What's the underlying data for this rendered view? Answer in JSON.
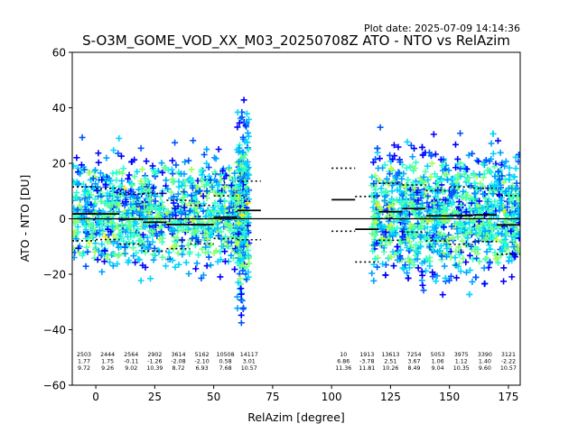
{
  "chart_data": {
    "type": "scatter",
    "title": "S-O3M_GOME_VOD_XX_M03_20250708Z ATO - NTO vs RelAzim",
    "plot_date": "Plot date: 2025-07-09 14:14:36",
    "xlabel": "RelAzim [degree]",
    "ylabel": "ATO - NTO [DU]",
    "xlim": [
      -10,
      180
    ],
    "ylim": [
      -60,
      60
    ],
    "xticks": [
      "0",
      "25",
      "50",
      "75",
      "100",
      "125",
      "150",
      "175"
    ],
    "xtick_values": [
      0,
      25,
      50,
      75,
      100,
      125,
      150,
      175
    ],
    "yticks": [
      "60",
      "40",
      "20",
      "0",
      "−20",
      "−40",
      "−60"
    ],
    "ytick_values": [
      60,
      40,
      20,
      0,
      -20,
      -40,
      -60
    ],
    "zero_line": 0,
    "grid": false,
    "legend": "none",
    "bins": [
      {
        "x": -5,
        "count": "2503",
        "mean": "1.77",
        "std": "9.72"
      },
      {
        "x": 5,
        "count": "2444",
        "mean": "1.75",
        "std": "9.26"
      },
      {
        "x": 15,
        "count": "2564",
        "mean": "-0.11",
        "std": "9.02"
      },
      {
        "x": 25,
        "count": "2902",
        "mean": "-1.26",
        "std": "10.39"
      },
      {
        "x": 35,
        "count": "3614",
        "mean": "-2.08",
        "std": "8.72"
      },
      {
        "x": 45,
        "count": "5162",
        "mean": "-2.10",
        "std": "6.93"
      },
      {
        "x": 55,
        "count": "10508",
        "mean": "0.58",
        "std": "7.68"
      },
      {
        "x": 65,
        "count": "14117",
        "mean": "3.01",
        "std": "10.57"
      },
      {
        "x": 105,
        "count": "10",
        "mean": "6.86",
        "std": "11.36"
      },
      {
        "x": 115,
        "count": "1913",
        "mean": "-3.78",
        "std": "11.81"
      },
      {
        "x": 125,
        "count": "13613",
        "mean": "2.51",
        "std": "10.26"
      },
      {
        "x": 135,
        "count": "7254",
        "mean": "3.67",
        "std": "8.49"
      },
      {
        "x": 145,
        "count": "5053",
        "mean": "1.06",
        "std": "9.04"
      },
      {
        "x": 155,
        "count": "3975",
        "mean": "1.12",
        "std": "10.35"
      },
      {
        "x": 165,
        "count": "3390",
        "mean": "1.40",
        "std": "9.60"
      },
      {
        "x": 175,
        "count": "3121",
        "mean": "-2.22",
        "std": "10.57"
      }
    ],
    "bin_width": 10,
    "point_colors": [
      "#0000ff",
      "#0055ff",
      "#00a0ff",
      "#00d4ff",
      "#29ffce",
      "#55ff9f",
      "#7dff7a",
      "#a0ff56",
      "#ceff29",
      "#ffe600",
      "#ffb900"
    ],
    "point_clusters": [
      {
        "x_min": -10,
        "x_max": 63,
        "y_center": 2,
        "y_spread": 15
      },
      {
        "x_min": 60,
        "x_max": 65,
        "y_center": 5,
        "y_spread": 26
      },
      {
        "x_min": 117,
        "x_max": 180,
        "y_center": 2,
        "y_spread": 17
      }
    ]
  }
}
